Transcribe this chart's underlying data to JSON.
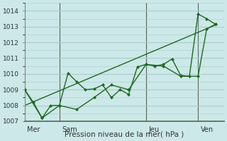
{
  "background_color": "#cce8e8",
  "grid_color": "#aacccc",
  "line_color": "#1a6b1a",
  "ylim": [
    1007,
    1014.5
  ],
  "yticks": [
    1007,
    1008,
    1009,
    1010,
    1011,
    1012,
    1013,
    1014
  ],
  "xlabel": "Pression niveau de la mer( hPa )",
  "day_labels": [
    "Mer",
    "Sam",
    "Jeu",
    "Ven"
  ],
  "day_positions": [
    0,
    4,
    14,
    20
  ],
  "xlim": [
    0,
    23
  ],
  "series1_x": [
    0,
    1,
    2,
    3,
    4,
    5,
    6,
    7,
    8,
    9,
    10,
    11,
    12,
    13,
    14,
    15,
    16,
    17,
    18,
    19,
    20,
    21,
    22
  ],
  "series1_y": [
    1009.0,
    1008.2,
    1007.2,
    1008.0,
    1008.0,
    1010.05,
    1009.5,
    1009.0,
    1009.05,
    1009.3,
    1008.5,
    1009.0,
    1008.7,
    1010.45,
    1010.6,
    1010.5,
    1010.6,
    1010.95,
    1009.9,
    1009.85,
    1013.8,
    1013.5,
    1013.15
  ],
  "series2_x": [
    0,
    2,
    4,
    6,
    8,
    10,
    12,
    14,
    16,
    18,
    20,
    21,
    22
  ],
  "series2_y": [
    1009.0,
    1007.2,
    1008.0,
    1007.75,
    1008.5,
    1009.3,
    1009.0,
    1010.6,
    1010.5,
    1009.85,
    1009.85,
    1012.85,
    1013.15
  ],
  "trend_x": [
    0,
    22
  ],
  "trend_y": [
    1008.0,
    1013.1
  ]
}
